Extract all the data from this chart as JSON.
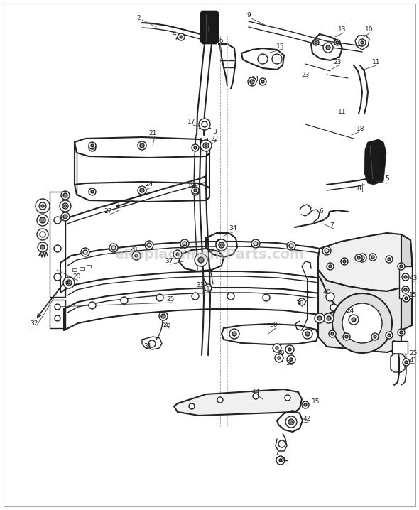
{
  "bg_color": "#ffffff",
  "watermark": "eReplacementParts.com",
  "watermark_color": "#bbbbbb",
  "watermark_alpha": 0.55,
  "line_color": "#222222",
  "border_color": "#aaaaaa",
  "figsize": [
    5.9,
    7.18
  ],
  "dpi": 100
}
